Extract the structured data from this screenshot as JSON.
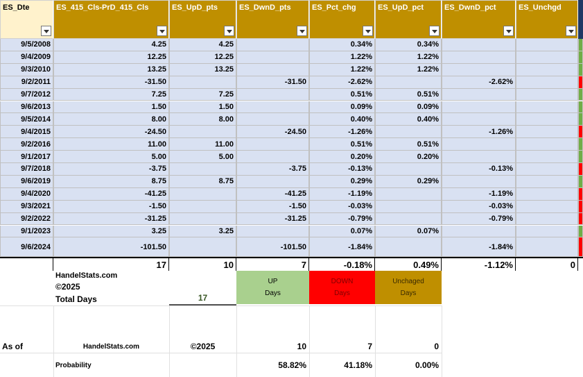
{
  "headers": [
    "ES_Dte",
    "ES_415_Cls-PrD_415_Cls",
    "ES_UpD_pts",
    "ES_DwnD_pts",
    "ES_Pct_chg",
    "ES_UpD_pct",
    "ES_DwnD_pct",
    "ES_Unchgd"
  ],
  "rows": [
    [
      "9/5/2008",
      "4.25",
      "4.25",
      "",
      "0.34%",
      "0.34%",
      "",
      ""
    ],
    [
      "9/4/2009",
      "12.25",
      "12.25",
      "",
      "1.22%",
      "1.22%",
      "",
      ""
    ],
    [
      "9/3/2010",
      "13.25",
      "13.25",
      "",
      "1.22%",
      "1.22%",
      "",
      ""
    ],
    [
      "9/2/2011",
      "-31.50",
      "",
      "-31.50",
      "-2.62%",
      "",
      "-2.62%",
      ""
    ],
    [
      "9/7/2012",
      "7.25",
      "7.25",
      "",
      "0.51%",
      "0.51%",
      "",
      ""
    ],
    [
      "9/6/2013",
      "1.50",
      "1.50",
      "",
      "0.09%",
      "0.09%",
      "",
      ""
    ],
    [
      "9/5/2014",
      "8.00",
      "8.00",
      "",
      "0.40%",
      "0.40%",
      "",
      ""
    ],
    [
      "9/4/2015",
      "-24.50",
      "",
      "-24.50",
      "-1.26%",
      "",
      "-1.26%",
      ""
    ],
    [
      "9/2/2016",
      "11.00",
      "11.00",
      "",
      "0.51%",
      "0.51%",
      "",
      ""
    ],
    [
      "9/1/2017",
      "5.00",
      "5.00",
      "",
      "0.20%",
      "0.20%",
      "",
      ""
    ],
    [
      "9/7/2018",
      "-3.75",
      "",
      "-3.75",
      "-0.13%",
      "",
      "-0.13%",
      ""
    ],
    [
      "9/6/2019",
      "8.75",
      "8.75",
      "",
      "0.29%",
      "0.29%",
      "",
      ""
    ],
    [
      "9/4/2020",
      "-41.25",
      "",
      "-41.25",
      "-1.19%",
      "",
      "-1.19%",
      ""
    ],
    [
      "9/3/2021",
      "-1.50",
      "",
      "-1.50",
      "-0.03%",
      "",
      "-0.03%",
      ""
    ],
    [
      "9/2/2022",
      "-31.25",
      "",
      "-31.25",
      "-0.79%",
      "",
      "-0.79%",
      ""
    ],
    [
      "9/1/2023",
      "3.25",
      "3.25",
      "",
      "0.07%",
      "0.07%",
      "",
      ""
    ],
    [
      "9/6/2024",
      "-101.50",
      "",
      "-101.50",
      "-1.84%",
      "",
      "-1.84%",
      ""
    ]
  ],
  "totals": [
    "17",
    "10",
    "7",
    "-0.18%",
    "0.49%",
    "-1.12%",
    "0"
  ],
  "summary": {
    "site": "HandelStats.com",
    "year": "©2025",
    "total_days_label": "Total Days",
    "total_days": "17",
    "up_label": "UP",
    "up_sub": "Days",
    "down_label": "DOWN",
    "down_sub": "Days",
    "unch_label": "Unchaged",
    "unch_sub": "Days",
    "as_of": "As of",
    "site2": "HandelStats.com",
    "year2": "©2025",
    "counts": [
      "10",
      "7",
      "0"
    ],
    "probability_label": "Probability",
    "probabilities": [
      "58.82%",
      "41.18%",
      "0.00%"
    ]
  }
}
